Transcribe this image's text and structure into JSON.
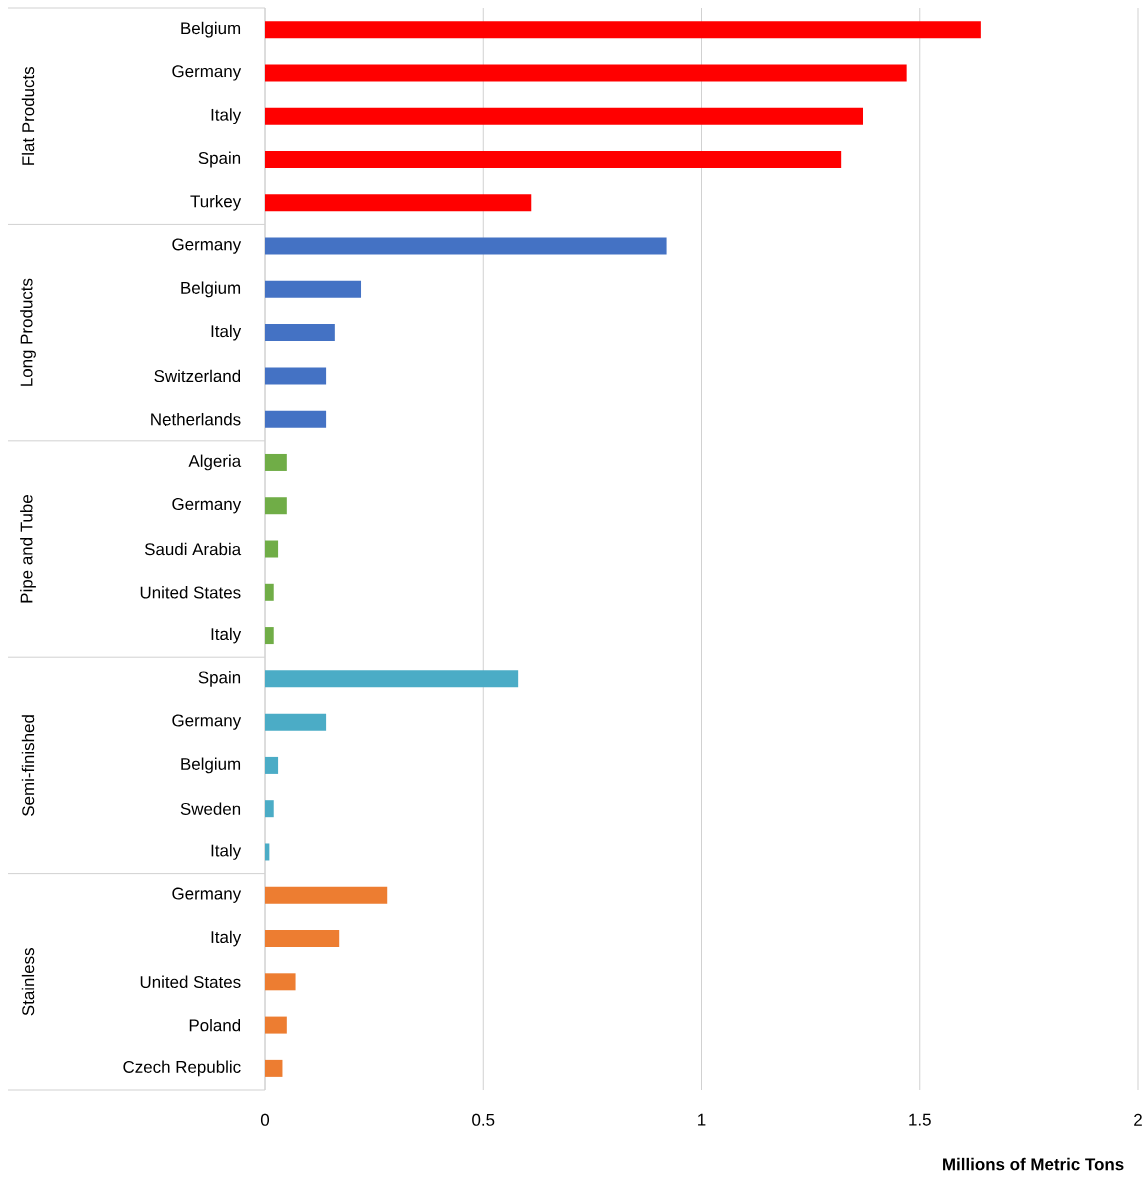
{
  "chart_data": {
    "type": "bar",
    "orientation": "horizontal",
    "xlabel": "Millions of Metric Tons",
    "categories": [
      "Belgium",
      "Germany",
      "Italy",
      "Spain",
      "Turkey",
      "Germany",
      "Belgium",
      "Italy",
      "Switzerland",
      "Netherlands",
      "Algeria",
      "Germany",
      "Saudi Arabia",
      "United States",
      "Italy",
      "Spain",
      "Germany",
      "Belgium",
      "Sweden",
      "Italy",
      "Germany",
      "Italy",
      "United States",
      "Poland",
      "Czech Republic"
    ],
    "values": [
      1.64,
      1.47,
      1.37,
      1.32,
      0.61,
      0.92,
      0.22,
      0.16,
      0.14,
      0.14,
      0.05,
      0.05,
      0.03,
      0.02,
      0.02,
      0.58,
      0.14,
      0.03,
      0.02,
      0.01,
      0.28,
      0.17,
      0.07,
      0.05,
      0.04
    ],
    "colors": [
      "#ff0000",
      "#ff0000",
      "#ff0000",
      "#ff0000",
      "#ff0000",
      "#4472c4",
      "#4472c4",
      "#4472c4",
      "#4472c4",
      "#4472c4",
      "#70ad47",
      "#70ad47",
      "#70ad47",
      "#70ad47",
      "#70ad47",
      "#4bacc6",
      "#4bacc6",
      "#4bacc6",
      "#4bacc6",
      "#4bacc6",
      "#ed7d31",
      "#ed7d31",
      "#ed7d31",
      "#ed7d31",
      "#ed7d31"
    ],
    "annotations": [
      "Flat Products",
      "Long Products",
      "Pipe and Tube",
      "Semi-finished",
      "Stainless"
    ],
    "xlim": [
      0,
      2
    ],
    "xticks": [
      0,
      0.5,
      1,
      1.5,
      2
    ],
    "grid": "x"
  }
}
